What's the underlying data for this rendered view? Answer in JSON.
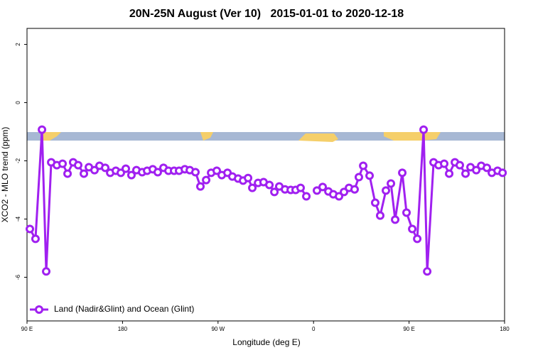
{
  "chart_data": {
    "type": "line",
    "title": "20N-25N August (Ver 10)   2015-01-01 to 2020-12-18",
    "x_label": "Longitude (deg E)",
    "y_label": "XCO2 - MLO trend (ppm)",
    "xlim": [
      90,
      540
    ],
    "xticks": [
      {
        "value": 90,
        "label": "90 E"
      },
      180,
      {
        "value": 270,
        "label": "90 W"
      },
      {
        "value": 360,
        "label": "0"
      },
      {
        "value": 450,
        "label": "90 E"
      },
      {
        "value": 540,
        "label": "180"
      }
    ],
    "ylim": [
      -7.5,
      2.55
    ],
    "yticks": [
      -6,
      -4,
      -2,
      0,
      2
    ],
    "grid": false,
    "legend": "bottom-left",
    "x": [
      92.7,
      98.0,
      104.1,
      108.1,
      112.8,
      118.1,
      123.5,
      128.2,
      133.5,
      138.2,
      143.6,
      148.3,
      153.6,
      158.3,
      163.7,
      168.4,
      173.7,
      178.4,
      183.1,
      188.4,
      193.1,
      198.5,
      203.2,
      208.5,
      213.2,
      218.6,
      223.3,
      228.6,
      233.3,
      238.7,
      243.4,
      248.7,
      253.4,
      258.8,
      263.5,
      268.8,
      273.5,
      278.9,
      283.5,
      288.9,
      293.6,
      298.3,
      302.3,
      307.7,
      312.9,
      318.4,
      323.1,
      327.7,
      333.1,
      338.5,
      343.1,
      347.8,
      353.2,
      357.9,
      363.2,
      368.6,
      374.0,
      378.6,
      384.0,
      388.7,
      393.4,
      398.7,
      402.7,
      406.8,
      412.8,
      418.1,
      422.8,
      428.2,
      432.9,
      436.9,
      443.6,
      447.6,
      453.0,
      457.7,
      463.7,
      467.1,
      473.1,
      477.8,
      483.1,
      487.8,
      493.2,
      497.8,
      503.2,
      507.9,
      513.3,
      518.0,
      523.3,
      528.0,
      533.4,
      538.1
    ],
    "series": [
      {
        "name": "Land (Nadir&Glint) and Ocean (Glint)",
        "color": "#a020f0",
        "values": [
          -4.34,
          -4.68,
          -0.93,
          -5.8,
          -2.05,
          -2.15,
          -2.1,
          -2.44,
          -2.05,
          -2.15,
          -2.44,
          -2.22,
          -2.32,
          -2.17,
          -2.24,
          -2.41,
          -2.34,
          -2.41,
          -2.27,
          -2.49,
          -2.32,
          -2.39,
          -2.34,
          -2.29,
          -2.39,
          -2.24,
          -2.34,
          -2.34,
          -2.34,
          -2.29,
          -2.32,
          -2.39,
          -2.88,
          -2.66,
          -2.41,
          -2.34,
          -2.49,
          -2.41,
          -2.54,
          -2.61,
          -2.68,
          -2.59,
          -2.93,
          -2.76,
          -2.73,
          -2.83,
          -3.07,
          -2.88,
          -2.98,
          -3.0,
          -3.0,
          -2.93,
          -3.22,
          null,
          -3.02,
          -2.9,
          -3.05,
          -3.15,
          -3.22,
          -3.07,
          -2.93,
          -2.98,
          -2.56,
          -2.17,
          -2.51,
          -3.44,
          -3.88,
          -3.02,
          -2.78,
          -4.02,
          -2.41,
          -3.78,
          -4.34,
          -4.68,
          -0.93,
          -5.8,
          -2.05,
          -2.15,
          -2.1,
          -2.44,
          -2.05,
          -2.15,
          -2.44,
          -2.22,
          -2.32,
          -2.17,
          -2.24,
          -2.41,
          -2.34,
          -2.41
        ]
      }
    ]
  }
}
